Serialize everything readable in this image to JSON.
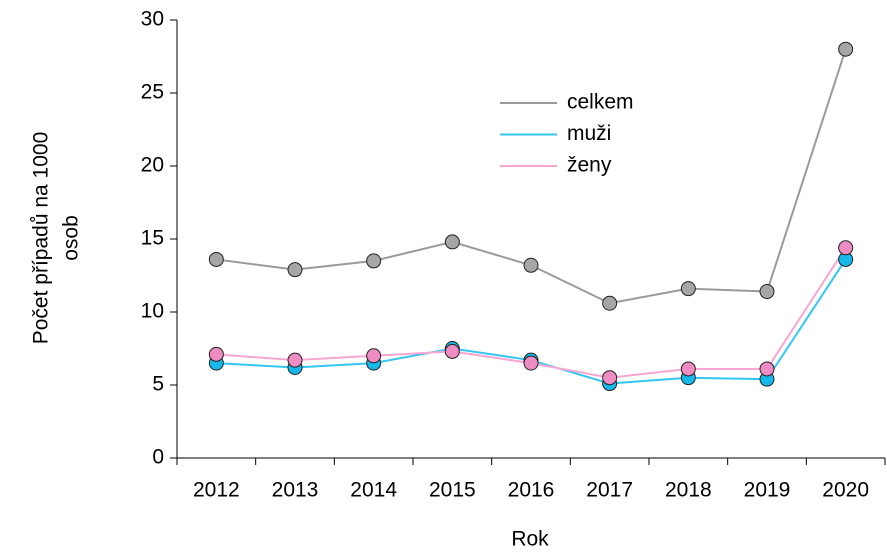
{
  "chart_data": {
    "type": "line",
    "x_label": "Rok",
    "y_label": [
      "Počet případů na 1000",
      "osob"
    ],
    "categories": [
      "2012",
      "2013",
      "2014",
      "2015",
      "2016",
      "2017",
      "2018",
      "2019",
      "2020"
    ],
    "series": [
      {
        "name": "celkem",
        "color": "#9a9a9a",
        "marker_color": "#a6a6a6",
        "values": [
          13.6,
          12.9,
          13.5,
          14.8,
          13.2,
          10.6,
          11.6,
          11.4,
          28.0
        ]
      },
      {
        "name": "muži",
        "color": "#33c6f2",
        "marker_color": "#16b9ea",
        "values": [
          6.5,
          6.2,
          6.5,
          7.5,
          6.7,
          5.1,
          5.5,
          5.4,
          13.6
        ]
      },
      {
        "name": "ženy",
        "color": "#f7a6d2",
        "marker_color": "#f08cc4",
        "values": [
          7.1,
          6.7,
          7.0,
          7.3,
          6.5,
          5.5,
          6.1,
          6.1,
          14.4
        ]
      }
    ],
    "ylim": [
      0,
      30
    ],
    "yticks": [
      0,
      5,
      10,
      15,
      20,
      25,
      30
    ],
    "grid": false,
    "legend": "upper center"
  }
}
